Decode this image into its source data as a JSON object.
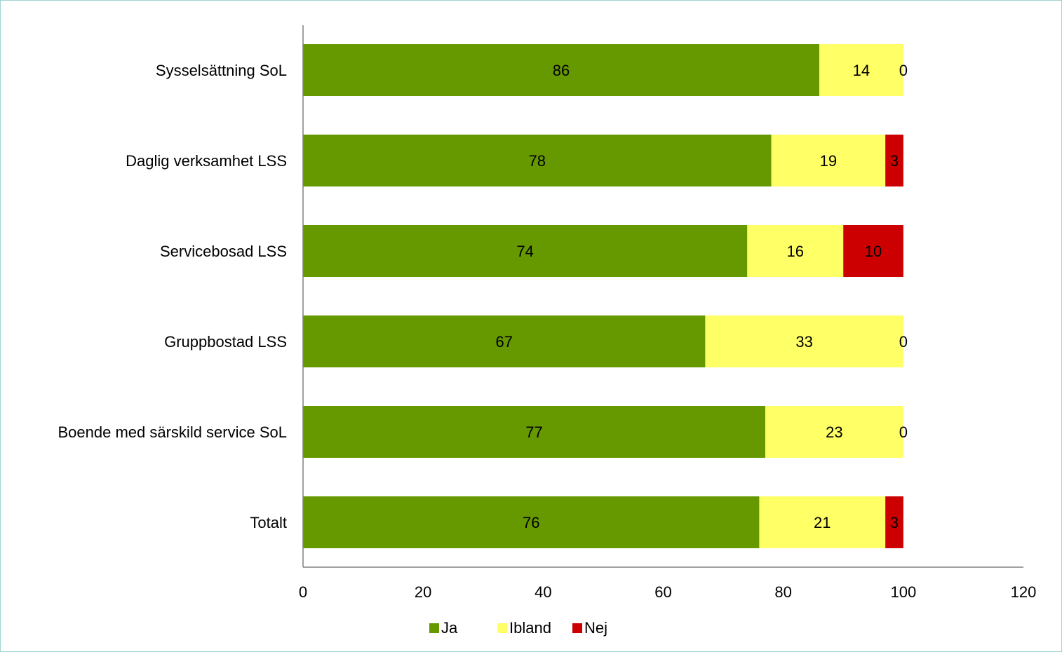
{
  "chart_data": {
    "type": "bar",
    "orientation": "horizontal",
    "stacked": true,
    "title": "",
    "xlabel": "",
    "ylabel": "",
    "categories": [
      "Sysselsättning SoL",
      "Daglig verksamhet LSS",
      "Servicebosad LSS",
      "Gruppbostad LSS",
      "Boende med särskild service SoL",
      "Totalt"
    ],
    "series": [
      {
        "name": "Ja",
        "color": "#669900",
        "values": [
          86,
          78,
          74,
          67,
          77,
          76
        ]
      },
      {
        "name": "Ibland",
        "color": "#ffff66",
        "values": [
          14,
          19,
          16,
          33,
          23,
          21
        ]
      },
      {
        "name": "Nej",
        "color": "#cc0000",
        "values": [
          0,
          3,
          10,
          0,
          0,
          3
        ]
      }
    ],
    "xlim": [
      0,
      120
    ],
    "xticks": [
      "0",
      "20",
      "40",
      "60",
      "80",
      "100",
      "120"
    ],
    "grid": false,
    "legend_position": "bottom"
  }
}
